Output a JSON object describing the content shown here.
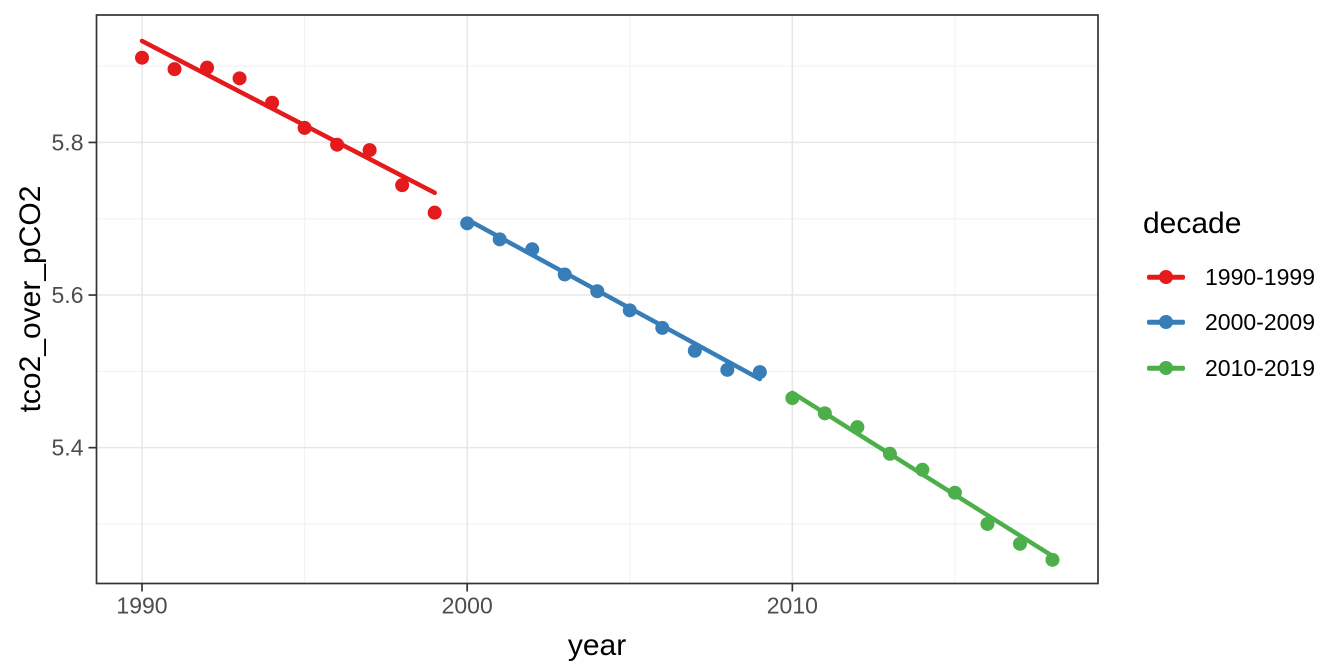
{
  "chart_data": {
    "type": "scatter",
    "title": "",
    "xlabel": "year",
    "ylabel": "tco2_over_pCO2",
    "xlim": [
      1988.6,
      2019.4
    ],
    "ylim": [
      5.222,
      5.967
    ],
    "grid": true,
    "x_major_ticks": [
      {
        "value": 1990,
        "label": "1990"
      },
      {
        "value": 2000,
        "label": "2000"
      },
      {
        "value": 2010,
        "label": "2010"
      }
    ],
    "x_minor_gridlines": [
      1995,
      2005,
      2015
    ],
    "y_major_ticks": [
      {
        "value": 5.4,
        "label": "5.4"
      },
      {
        "value": 5.6,
        "label": "5.6"
      },
      {
        "value": 5.8,
        "label": "5.8"
      }
    ],
    "y_minor_gridlines": [
      5.3,
      5.5,
      5.7,
      5.9
    ],
    "legend": {
      "title": "decade",
      "position": "right",
      "entries": [
        {
          "label": "1990-1999",
          "color": "#E41A1C"
        },
        {
          "label": "2000-2009",
          "color": "#377EB8"
        },
        {
          "label": "2010-2019",
          "color": "#4DAF4A"
        }
      ]
    },
    "series": [
      {
        "name": "1990-1999",
        "color": "#E41A1C",
        "x": [
          1990,
          1991,
          1992,
          1993,
          1994,
          1995,
          1996,
          1997,
          1998,
          1999
        ],
        "y": [
          5.911,
          5.896,
          5.898,
          5.884,
          5.852,
          5.819,
          5.797,
          5.79,
          5.744,
          5.708
        ],
        "trend": {
          "x": [
            1990,
            1999
          ],
          "y": [
            5.933,
            5.734
          ]
        }
      },
      {
        "name": "2000-2009",
        "color": "#377EB8",
        "x": [
          2000,
          2001,
          2002,
          2003,
          2004,
          2005,
          2006,
          2007,
          2008,
          2009
        ],
        "y": [
          5.694,
          5.673,
          5.66,
          5.627,
          5.605,
          5.58,
          5.557,
          5.527,
          5.502,
          5.499
        ],
        "trend": {
          "x": [
            2000,
            2009
          ],
          "y": [
            5.699,
            5.49
          ]
        }
      },
      {
        "name": "2010-2019",
        "color": "#4DAF4A",
        "x": [
          2010,
          2011,
          2012,
          2013,
          2014,
          2015,
          2016,
          2017,
          2018
        ],
        "y": [
          5.465,
          5.445,
          5.427,
          5.392,
          5.371,
          5.341,
          5.3,
          5.274,
          5.253
        ],
        "trend": {
          "x": [
            2010,
            2018
          ],
          "y": [
            5.472,
            5.258
          ]
        }
      }
    ],
    "style": {
      "major_grid_color": "#e7e7e7",
      "minor_grid_color": "#f3f3f3",
      "panel_border_color": "#333333",
      "tick_color": "#333333",
      "tick_label_color": "#4d4d4d",
      "background": "#ffffff"
    }
  }
}
